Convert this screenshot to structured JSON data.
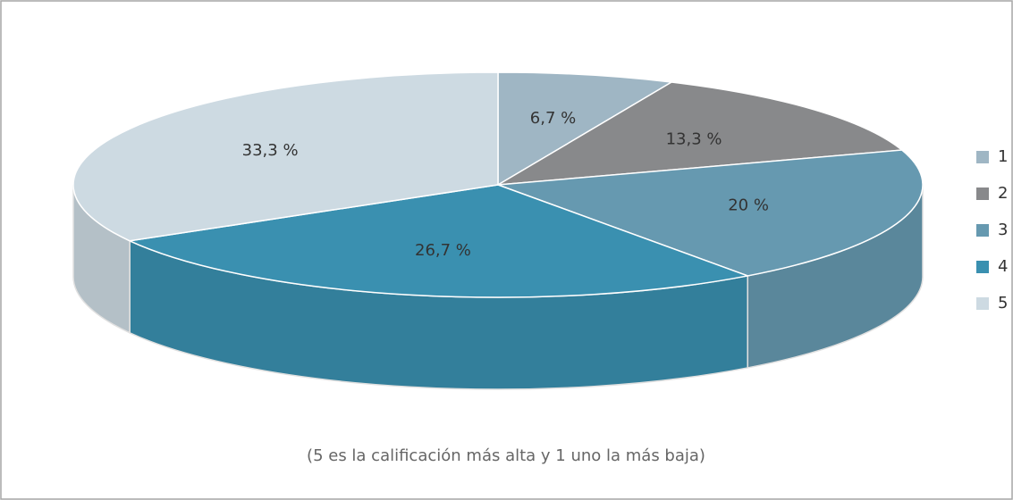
{
  "chart_data": {
    "type": "pie3d",
    "categories": [
      "1",
      "2",
      "3",
      "4",
      "5"
    ],
    "values": [
      6.7,
      13.3,
      20,
      26.7,
      33.3
    ],
    "value_labels": [
      "6,7 %",
      "13,3 %",
      "20 %",
      "26,7 %",
      "33,3 %"
    ],
    "colors": [
      "#9fb6c4",
      "#88898b",
      "#6699b0",
      "#3a90b0",
      "#cddae2"
    ],
    "note": "(5 es la calificación más alta y 1 uno la más baja)",
    "legend": "right"
  }
}
